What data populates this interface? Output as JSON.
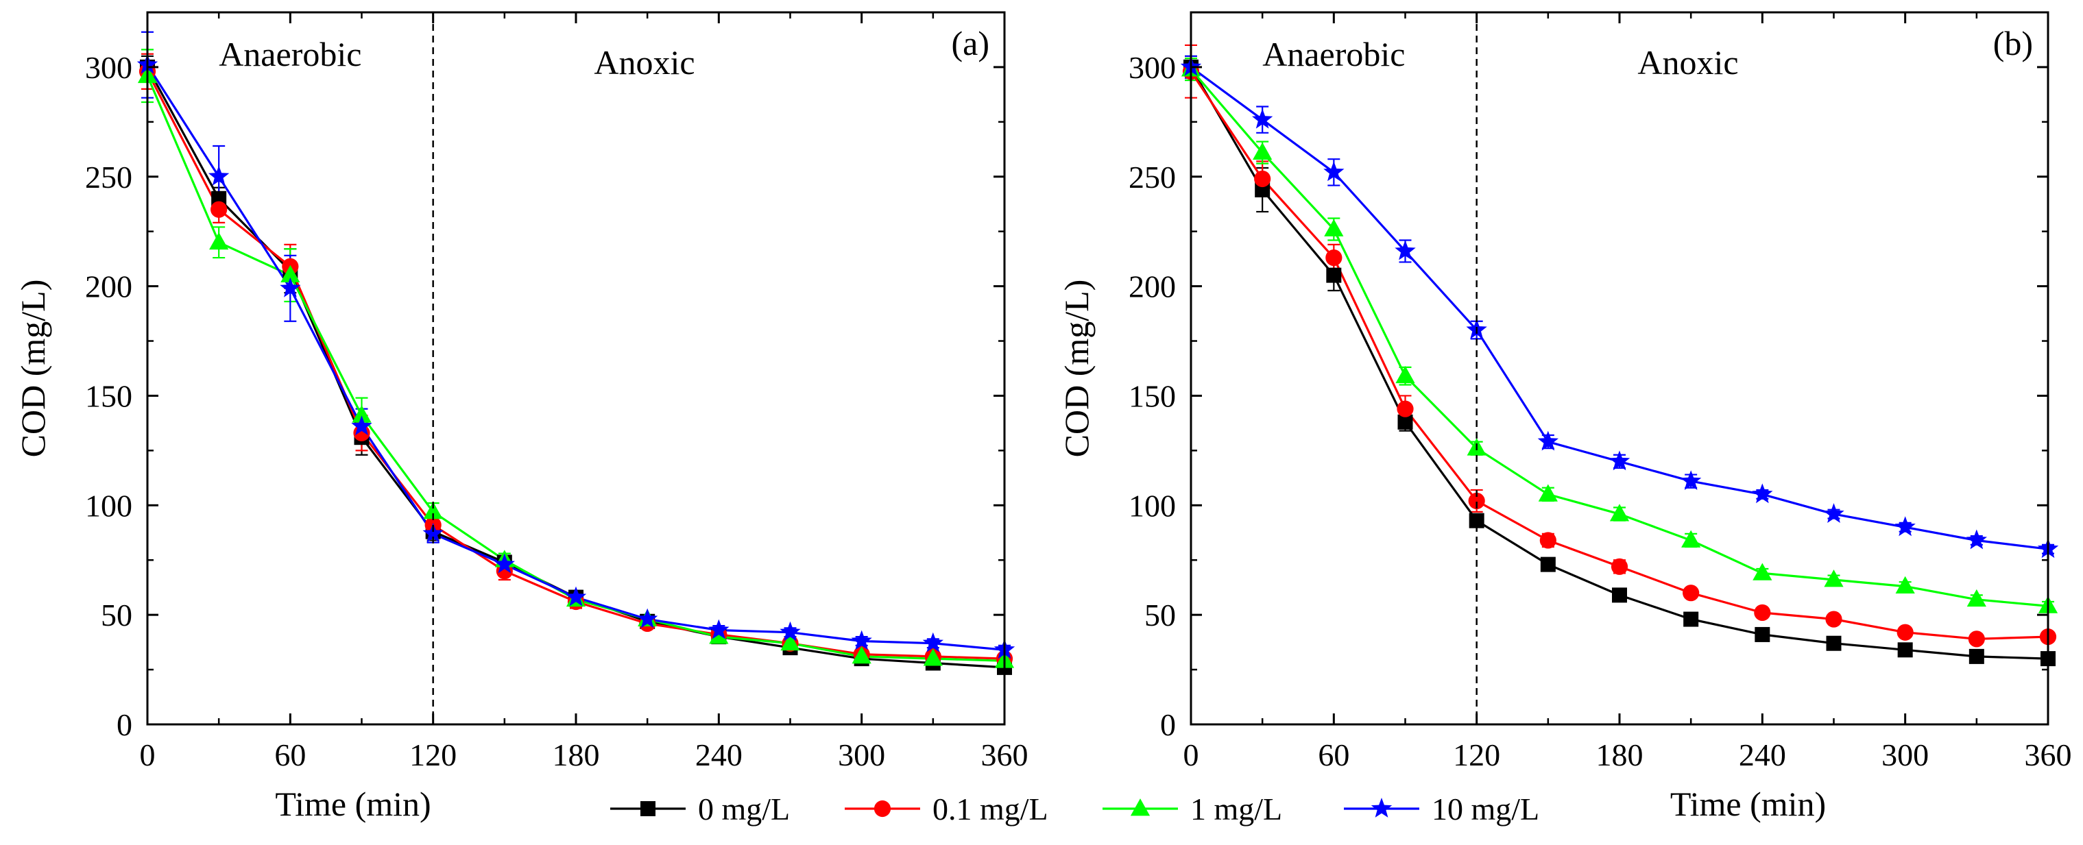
{
  "chart_data": [
    {
      "panel": "(a)",
      "type": "line",
      "xlabel": "Time (min)",
      "ylabel": "COD (mg/L)",
      "xlim": [
        0,
        360
      ],
      "ylim": [
        0,
        325
      ],
      "xticks": [
        0,
        60,
        120,
        180,
        240,
        300,
        360
      ],
      "yticks": [
        0,
        50,
        100,
        150,
        200,
        250,
        300
      ],
      "xtick_labels": [
        "0",
        "60",
        "120",
        "180",
        "240",
        "300",
        "360"
      ],
      "ytick_labels": [
        "0",
        "50",
        "100",
        "150",
        "200",
        "250",
        "300"
      ],
      "phase_boundary": 120,
      "phase_labels": [
        "Anaerobic",
        "Anoxic"
      ],
      "x": [
        0,
        30,
        60,
        90,
        120,
        150,
        180,
        210,
        240,
        270,
        300,
        330,
        360
      ],
      "series": [
        {
          "name": "0 mg/L",
          "color": "#000000",
          "marker": "square",
          "values": [
            300,
            240,
            207,
            131,
            88,
            74,
            58,
            47,
            40,
            35,
            30,
            28,
            26
          ],
          "errors": [
            5,
            5,
            10,
            8,
            4,
            3,
            3,
            2,
            2,
            2,
            2,
            2,
            2
          ]
        },
        {
          "name": "0.1 mg/L",
          "color": "#ff0000",
          "marker": "circle",
          "values": [
            298,
            235,
            209,
            133,
            91,
            70,
            56,
            46,
            41,
            37,
            32,
            31,
            30
          ],
          "errors": [
            8,
            6,
            10,
            8,
            4,
            4,
            3,
            2,
            2,
            2,
            2,
            2,
            2
          ]
        },
        {
          "name": "1 mg/L",
          "color": "#00ff00",
          "marker": "triangle",
          "values": [
            296,
            220,
            205,
            141,
            97,
            75,
            57,
            48,
            40,
            37,
            31,
            30,
            29
          ],
          "errors": [
            12,
            7,
            12,
            8,
            4,
            3,
            3,
            2,
            2,
            2,
            2,
            2,
            2
          ]
        },
        {
          "name": "10 mg/L",
          "color": "#0000ff",
          "marker": "star",
          "values": [
            301,
            250,
            199,
            136,
            87,
            73,
            58,
            48,
            43,
            42,
            38,
            37,
            34
          ],
          "errors": [
            15,
            14,
            15,
            8,
            4,
            3,
            3,
            2,
            2,
            2,
            2,
            2,
            2
          ]
        }
      ]
    },
    {
      "panel": "(b)",
      "type": "line",
      "xlabel": "Time (min)",
      "ylabel": "COD (mg/L)",
      "xlim": [
        0,
        360
      ],
      "ylim": [
        0,
        325
      ],
      "xticks": [
        0,
        60,
        120,
        180,
        240,
        300,
        360
      ],
      "yticks": [
        0,
        50,
        100,
        150,
        200,
        250,
        300
      ],
      "xtick_labels": [
        "0",
        "60",
        "120",
        "180",
        "240",
        "300",
        "360"
      ],
      "ytick_labels": [
        "0",
        "50",
        "100",
        "150",
        "200",
        "250",
        "300"
      ],
      "phase_boundary": 120,
      "phase_labels": [
        "Anaerobic",
        "Anoxic"
      ],
      "x": [
        0,
        30,
        60,
        90,
        120,
        150,
        180,
        210,
        240,
        270,
        300,
        330,
        360
      ],
      "series": [
        {
          "name": "0 mg/L",
          "color": "#000000",
          "marker": "square",
          "values": [
            300,
            244,
            205,
            138,
            93,
            73,
            59,
            48,
            41,
            37,
            34,
            31,
            30
          ],
          "errors": [
            5,
            10,
            7,
            4,
            3,
            2,
            2,
            2,
            2,
            2,
            2,
            2,
            2
          ]
        },
        {
          "name": "0.1 mg/L",
          "color": "#ff0000",
          "marker": "circle",
          "values": [
            298,
            249,
            213,
            144,
            102,
            84,
            72,
            60,
            51,
            48,
            42,
            39,
            40
          ],
          "errors": [
            12,
            8,
            6,
            6,
            5,
            3,
            3,
            2,
            2,
            2,
            2,
            2,
            2
          ]
        },
        {
          "name": "1 mg/L",
          "color": "#00ff00",
          "marker": "triangle",
          "values": [
            299,
            261,
            226,
            159,
            126,
            105,
            96,
            84,
            69,
            66,
            63,
            57,
            54
          ],
          "errors": [
            5,
            5,
            5,
            4,
            3,
            3,
            3,
            3,
            2,
            2,
            2,
            2,
            2
          ]
        },
        {
          "name": "10 mg/L",
          "color": "#0000ff",
          "marker": "star",
          "values": [
            300,
            276,
            252,
            216,
            180,
            129,
            120,
            111,
            105,
            96,
            90,
            84,
            80
          ],
          "errors": [
            5,
            6,
            6,
            5,
            4,
            3,
            3,
            3,
            2,
            2,
            2,
            2,
            2
          ]
        }
      ]
    }
  ],
  "legend": {
    "entries": [
      {
        "label": "0 mg/L",
        "color": "#000000",
        "marker": "square"
      },
      {
        "label": "0.1 mg/L",
        "color": "#ff0000",
        "marker": "circle"
      },
      {
        "label": "1 mg/L",
        "color": "#00ff00",
        "marker": "triangle"
      },
      {
        "label": "10 mg/L",
        "color": "#0000ff",
        "marker": "star"
      }
    ]
  }
}
